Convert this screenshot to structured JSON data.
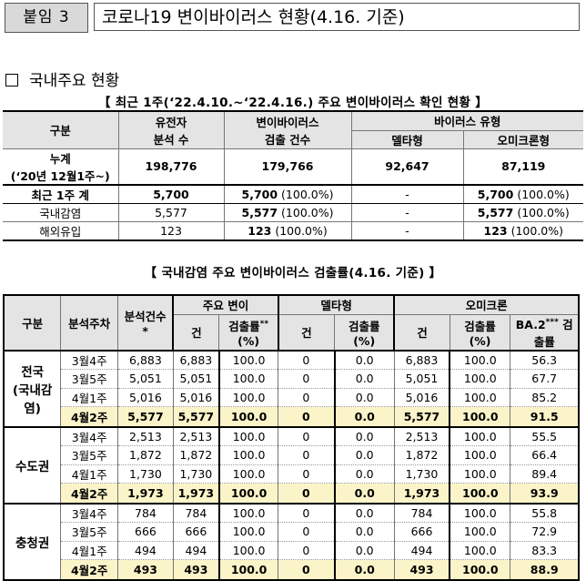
{
  "header": {
    "badge": "붙임 3",
    "title": "코로나19 변이바이러스 현황(4.16. 기준)"
  },
  "section_title": "국내주요 현황",
  "table1": {
    "caption": "【 최근 1주(‘22.4.10.~‘22.4.16.) 주요 변이바이러스 확인 현황 】",
    "headers": {
      "gubun": "구분",
      "genome_1": "유전자",
      "genome_2": "분석 수",
      "variant_1": "변이바이러스",
      "variant_2": "검출 건수",
      "type": "바이러스 유형",
      "delta": "델타형",
      "omicron": "오미크론형"
    },
    "rows": [
      {
        "label1": "누계",
        "label2": "(‘20년 12월1주~)",
        "genome": "198,776",
        "variant": "179,766",
        "delta": "92,647",
        "omicron": "87,119"
      },
      {
        "label": "최근 1주 계",
        "genome": "5,700",
        "variant": "5,700",
        "variant_pct": "(100.0%)",
        "delta": "-",
        "omicron": "5,700",
        "omicron_pct": "(100.0%)"
      },
      {
        "label": "국내감염",
        "genome": "5,577",
        "variant": "5,577",
        "variant_pct": "(100.0%)",
        "delta": "-",
        "omicron": "5,577",
        "omicron_pct": "(100.0%)"
      },
      {
        "label": "해외유입",
        "genome": "123",
        "variant": "123",
        "variant_pct": "(100.0%)",
        "delta": "-",
        "omicron": "123",
        "omicron_pct": "(100.0%)"
      }
    ]
  },
  "table2": {
    "caption": "【 국내감염 주요 변이바이러스 검출률(4.16. 기준) 】",
    "headers": {
      "gubun": "구분",
      "week": "분석주차",
      "analyzed": "분석건수",
      "analyzed_mark": "*",
      "major": "주요 변이",
      "delta": "델타형",
      "omicron": "오미크론",
      "count": "건",
      "rate1": "검출률",
      "rate_mark": "**",
      "rate2": "(%)",
      "ba2_1": "BA.2",
      "ba2_mark": "***",
      "ba2_2": "검",
      "ba2_3": "출률"
    },
    "regions": [
      {
        "name_lines": [
          "전국",
          "(국내감",
          "염)"
        ],
        "rows": [
          [
            "3월4주",
            "6,883",
            "6,883",
            "100.0",
            "0",
            "0.0",
            "6,883",
            "100.0",
            "56.3"
          ],
          [
            "3월5주",
            "5,051",
            "5,051",
            "100.0",
            "0",
            "0.0",
            "5,051",
            "100.0",
            "67.7"
          ],
          [
            "4월1주",
            "5,016",
            "5,016",
            "100.0",
            "0",
            "0.0",
            "5,016",
            "100.0",
            "85.2"
          ],
          [
            "4월2주",
            "5,577",
            "5,577",
            "100.0",
            "0",
            "0.0",
            "5,577",
            "100.0",
            "91.5"
          ]
        ]
      },
      {
        "name_lines": [
          "수도권"
        ],
        "rows": [
          [
            "3월4주",
            "2,513",
            "2,513",
            "100.0",
            "0",
            "0.0",
            "2,513",
            "100.0",
            "55.5"
          ],
          [
            "3월5주",
            "1,872",
            "1,872",
            "100.0",
            "0",
            "0.0",
            "1,872",
            "100.0",
            "66.4"
          ],
          [
            "4월1주",
            "1,730",
            "1,730",
            "100.0",
            "0",
            "0.0",
            "1,730",
            "100.0",
            "89.4"
          ],
          [
            "4월2주",
            "1,973",
            "1,973",
            "100.0",
            "0",
            "0.0",
            "1,973",
            "100.0",
            "93.9"
          ]
        ]
      },
      {
        "name_lines": [
          "충청권"
        ],
        "rows": [
          [
            "3월4주",
            "784",
            "784",
            "100.0",
            "0",
            "0.0",
            "784",
            "100.0",
            "55.8"
          ],
          [
            "3월5주",
            "666",
            "666",
            "100.0",
            "0",
            "0.0",
            "666",
            "100.0",
            "72.9"
          ],
          [
            "4월1주",
            "494",
            "494",
            "100.0",
            "0",
            "0.0",
            "494",
            "100.0",
            "83.3"
          ],
          [
            "4월2주",
            "493",
            "493",
            "100.0",
            "0",
            "0.0",
            "493",
            "100.0",
            "88.9"
          ]
        ]
      }
    ]
  }
}
